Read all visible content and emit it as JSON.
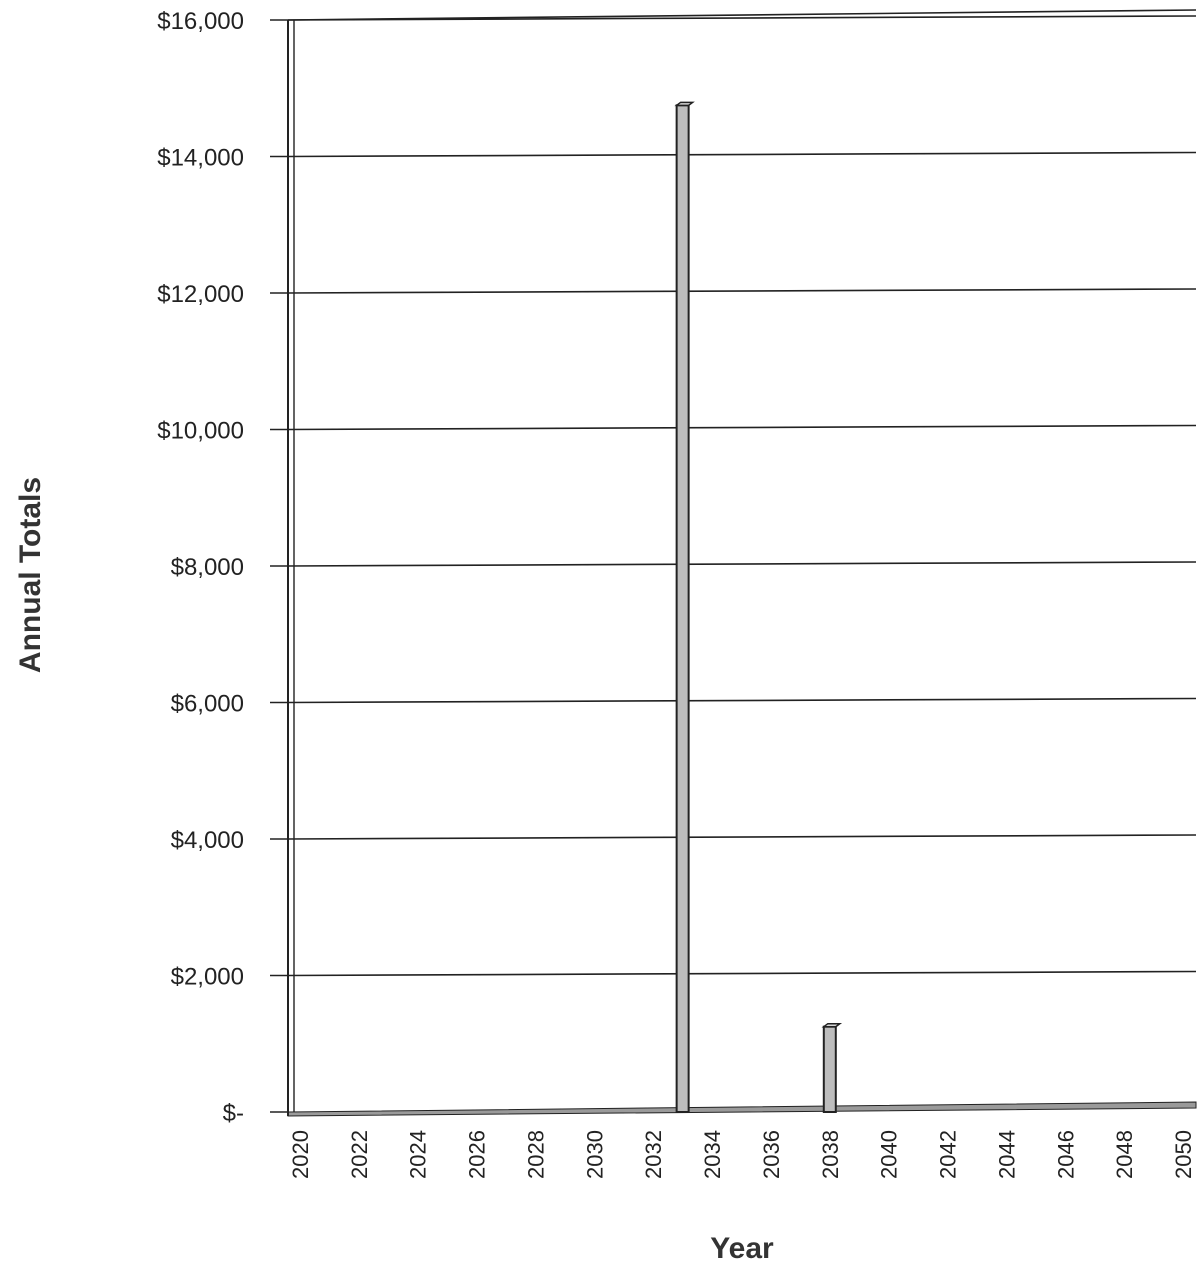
{
  "chart_data": {
    "type": "bar",
    "title": "",
    "xlabel": "Year",
    "ylabel": "Annual Totals",
    "ylim": [
      0,
      16000
    ],
    "y_ticks": [
      0,
      2000,
      4000,
      6000,
      8000,
      10000,
      12000,
      14000,
      16000
    ],
    "y_tick_labels": [
      "$-",
      "$2,000",
      "$4,000",
      "$6,000",
      "$8,000",
      "$10,000",
      "$12,000",
      "$14,000",
      "$16,000"
    ],
    "x_tick_labels": [
      "2020",
      "2022",
      "2024",
      "2026",
      "2028",
      "2030",
      "2032",
      "2034",
      "2036",
      "2038",
      "2040",
      "2042",
      "2044",
      "2046",
      "2048",
      "2050"
    ],
    "categories": [
      "2020",
      "2021",
      "2022",
      "2023",
      "2024",
      "2025",
      "2026",
      "2027",
      "2028",
      "2029",
      "2030",
      "2031",
      "2032",
      "2033",
      "2034",
      "2035",
      "2036",
      "2037",
      "2038",
      "2039",
      "2040",
      "2041",
      "2042",
      "2043",
      "2044",
      "2045",
      "2046",
      "2047",
      "2048",
      "2049",
      "2050"
    ],
    "values": [
      0,
      0,
      0,
      0,
      0,
      0,
      0,
      0,
      0,
      0,
      0,
      0,
      0,
      14750,
      0,
      0,
      0,
      0,
      1250,
      0,
      0,
      0,
      0,
      0,
      0,
      0,
      0,
      0,
      0,
      0,
      0
    ],
    "grid": true,
    "legend": "none",
    "colors": {
      "bar_fill": "#bdbdbd",
      "bar_stroke": "#222222",
      "grid": "#222222",
      "floor": "#9a9a9a"
    }
  }
}
